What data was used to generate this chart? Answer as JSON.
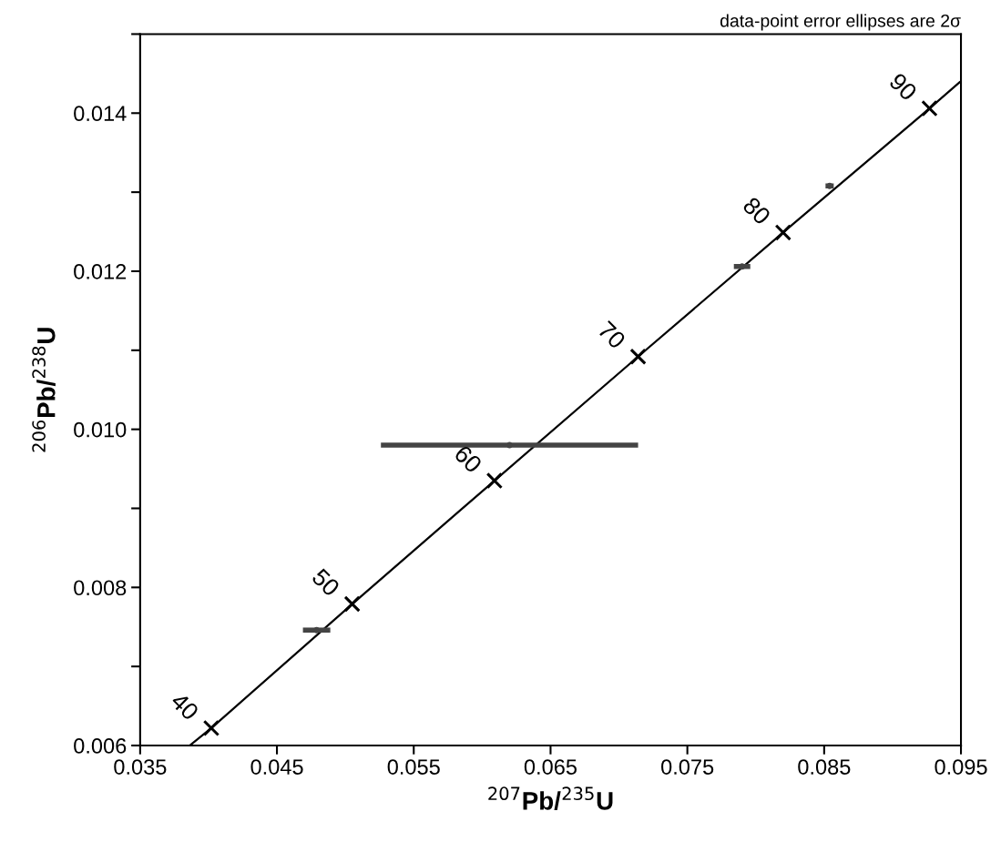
{
  "chart_data": {
    "type": "line",
    "xlabel": "$^{207}$Pb/$^{235}$U",
    "ylabel": "$^{206}$Pb/$^{238}$U",
    "xlim": [
      0.035,
      0.095
    ],
    "ylim": [
      0.006,
      0.015
    ],
    "xticks": [
      0.035,
      0.045,
      0.055,
      0.065,
      0.075,
      0.085,
      0.095
    ],
    "yticks": [
      0.006,
      {
        "value": 0.007,
        "label": null
      },
      0.008,
      {
        "value": 0.009,
        "label": null
      },
      {
        "value": 0.01,
        "label": "0.010"
      },
      {
        "value": 0.011,
        "label": null
      },
      0.012,
      {
        "value": 0.013,
        "label": null
      },
      0.014,
      {
        "value": 0.015,
        "label": null
      }
    ],
    "grid": false,
    "series": [
      {
        "color": "#000000",
        "marker": "none",
        "line_style": "solid",
        "x": [
          0.0387,
          0.0402,
          0.0505,
          0.0609,
          0.0714,
          0.082,
          0.0927,
          0.0949
        ],
        "values": [
          0.00601,
          0.00622,
          0.00779,
          0.00935,
          0.01092,
          0.01249,
          0.01406,
          0.01439
        ]
      },
      {
        "type": "scatter",
        "color": "#000000",
        "marker": "cross",
        "x": [
          0.0402,
          0.0505,
          0.0609,
          0.0714,
          0.082,
          0.0927
        ],
        "values": [
          0.00622,
          0.00779,
          0.00935,
          0.01092,
          0.01249,
          0.01406
        ]
      },
      {
        "type": "scatter",
        "color": "#444444",
        "marker": "circle",
        "x": [
          0.062,
          0.0479,
          0.079,
          0.0854
        ],
        "values": [
          0.0098,
          0.00746,
          0.01206,
          0.01308
        ],
        "xerrors": [
          0.0094,
          0.001,
          0.0006,
          0.0003
        ]
      }
    ],
    "annotations": [
      {
        "text": "40",
        "x": 0.0402,
        "y": 0.00622
      },
      {
        "text": "50",
        "x": 0.0505,
        "y": 0.00779
      },
      {
        "text": "60",
        "x": 0.0609,
        "y": 0.00935
      },
      {
        "text": "70",
        "x": 0.0714,
        "y": 0.01092
      },
      {
        "text": "80",
        "x": 0.082,
        "y": 0.01249
      },
      {
        "text": "90",
        "x": 0.0927,
        "y": 0.01406
      },
      "data-point error ellipses are 2σ"
    ]
  }
}
